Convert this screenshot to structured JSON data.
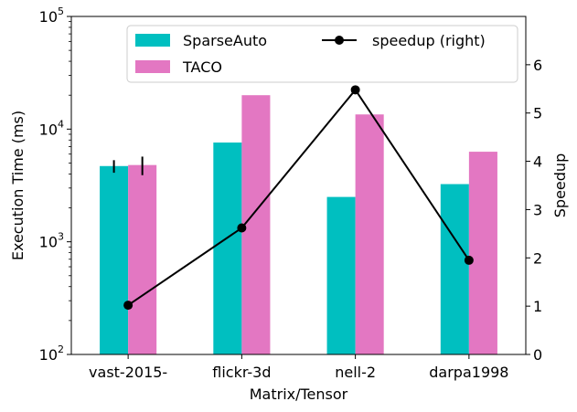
{
  "chart_data": {
    "type": "bar",
    "title": "",
    "xlabel": "Matrix/Tensor",
    "ylabel": "Execution Time (ms)",
    "ylabel_right": "Speedup",
    "yscale": "log",
    "ylim": [
      100,
      100000
    ],
    "ylim_right": [
      0,
      7
    ],
    "categories": [
      "vast-2015-",
      "flickr-3d",
      "nell-2",
      "darpa1998"
    ],
    "series": [
      {
        "name": "SparseAuto",
        "color": "#00bfc0",
        "values": [
          4700,
          7600,
          2500,
          3250
        ],
        "error": [
          600,
          0,
          0,
          0
        ]
      },
      {
        "name": "TACO",
        "color": "#e377c2",
        "values": [
          4800,
          20000,
          13500,
          6300
        ],
        "error": [
          900,
          0,
          0,
          0
        ]
      }
    ],
    "line_series": {
      "name": "speedup (right)",
      "color": "#000000",
      "values": [
        1.02,
        2.62,
        5.48,
        1.95
      ]
    },
    "y_ticks": [
      {
        "value": 100,
        "base": "10",
        "exp": "2"
      },
      {
        "value": 1000,
        "base": "10",
        "exp": "3"
      },
      {
        "value": 10000,
        "base": "10",
        "exp": "4"
      },
      {
        "value": 100000,
        "base": "10",
        "exp": "5"
      }
    ],
    "y_ticks_right": [
      "0",
      "1",
      "2",
      "3",
      "4",
      "5",
      "6"
    ],
    "legend": {
      "location": "top",
      "entries": [
        "SparseAuto",
        "TACO",
        "speedup (right)"
      ]
    }
  }
}
